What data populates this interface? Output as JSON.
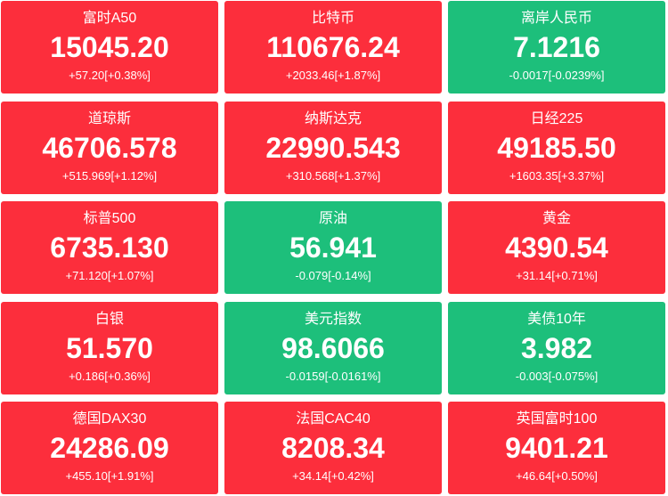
{
  "colors": {
    "up": "#fc2e3c",
    "down": "#1dbf7b"
  },
  "tiles": [
    {
      "name": "富时A50",
      "value": "15045.20",
      "change": "+57.20[+0.38%]",
      "trend": "up"
    },
    {
      "name": "比特币",
      "value": "110676.24",
      "change": "+2033.46[+1.87%]",
      "trend": "up"
    },
    {
      "name": "离岸人民币",
      "value": "7.1216",
      "change": "-0.0017[-0.0239%]",
      "trend": "down"
    },
    {
      "name": "道琼斯",
      "value": "46706.578",
      "change": "+515.969[+1.12%]",
      "trend": "up"
    },
    {
      "name": "纳斯达克",
      "value": "22990.543",
      "change": "+310.568[+1.37%]",
      "trend": "up"
    },
    {
      "name": "日经225",
      "value": "49185.50",
      "change": "+1603.35[+3.37%]",
      "trend": "up"
    },
    {
      "name": "标普500",
      "value": "6735.130",
      "change": "+71.120[+1.07%]",
      "trend": "up"
    },
    {
      "name": "原油",
      "value": "56.941",
      "change": "-0.079[-0.14%]",
      "trend": "down"
    },
    {
      "name": "黄金",
      "value": "4390.54",
      "change": "+31.14[+0.71%]",
      "trend": "up"
    },
    {
      "name": "白银",
      "value": "51.570",
      "change": "+0.186[+0.36%]",
      "trend": "up"
    },
    {
      "name": "美元指数",
      "value": "98.6066",
      "change": "-0.0159[-0.0161%]",
      "trend": "down"
    },
    {
      "name": "美债10年",
      "value": "3.982",
      "change": "-0.003[-0.075%]",
      "trend": "down"
    },
    {
      "name": "德国DAX30",
      "value": "24286.09",
      "change": "+455.10[+1.91%]",
      "trend": "up"
    },
    {
      "name": "法国CAC40",
      "value": "8208.34",
      "change": "+34.14[+0.42%]",
      "trend": "up"
    },
    {
      "name": "英国富时100",
      "value": "9401.21",
      "change": "+46.64[+0.50%]",
      "trend": "up"
    }
  ]
}
